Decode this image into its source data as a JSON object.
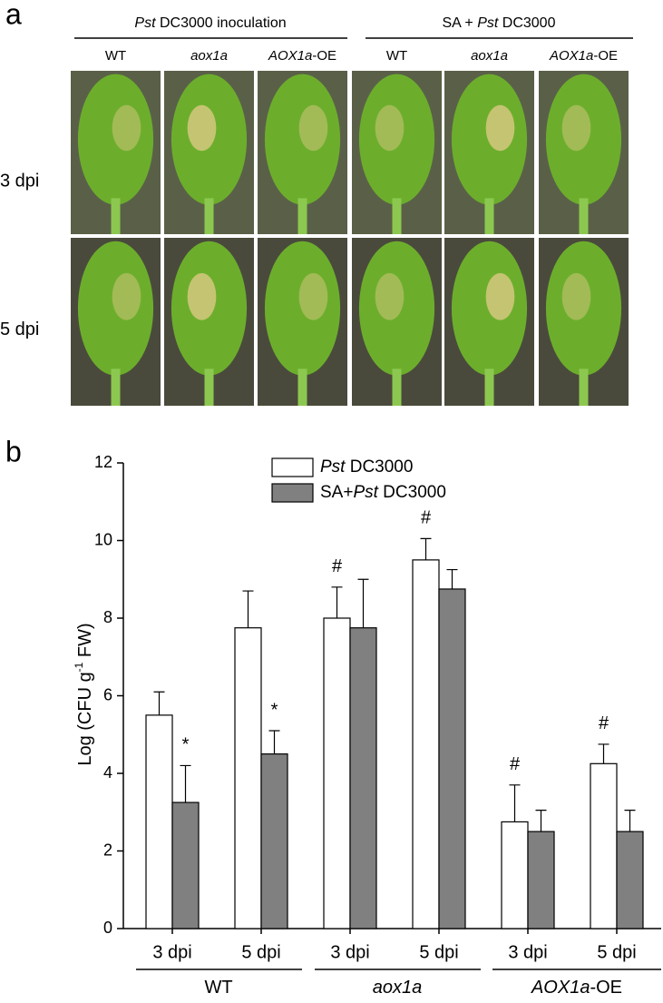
{
  "panel_a": {
    "label": "a",
    "headers": [
      [
        {
          "text": "Pst",
          "italic": true
        },
        {
          "text": " DC3000 inoculation"
        }
      ],
      [
        {
          "text": "SA + "
        },
        {
          "text": "Pst",
          "italic": true
        },
        {
          "text": " DC3000"
        }
      ]
    ],
    "columns": [
      [
        {
          "text": "WT"
        }
      ],
      [
        {
          "text": "aox1a",
          "italic": true
        }
      ],
      [
        {
          "text": "AOX1a",
          "italic": true
        },
        {
          "text": "-OE"
        }
      ],
      [
        {
          "text": "WT"
        }
      ],
      [
        {
          "text": "aox1a",
          "italic": true
        }
      ],
      [
        {
          "text": "AOX1a",
          "italic": true
        },
        {
          "text": "-OE"
        }
      ]
    ],
    "rows": [
      "3 dpi",
      "5 dpi"
    ]
  },
  "chart_data": {
    "type": "bar",
    "panel_label": "b",
    "ylabel": [
      {
        "text": "Log (CFU g"
      },
      {
        "text": "-1",
        "sup": true
      },
      {
        "text": " FW)"
      }
    ],
    "groups": [
      {
        "label": [
          {
            "text": "WT"
          }
        ],
        "categories": [
          "3 dpi",
          "5 dpi"
        ]
      },
      {
        "label": [
          {
            "text": "aox1a",
            "italic": true
          }
        ],
        "categories": [
          "3 dpi",
          "5 dpi"
        ]
      },
      {
        "label": [
          {
            "text": "AOX1a",
            "italic": true
          },
          {
            "text": "-OE"
          }
        ],
        "categories": [
          "3 dpi",
          "5 dpi"
        ]
      }
    ],
    "ylim": [
      0,
      12
    ],
    "yticks": [
      0,
      2,
      4,
      6,
      8,
      10,
      12
    ],
    "series": [
      {
        "name": [
          {
            "text": "Pst",
            "italic": true
          },
          {
            "text": " DC3000"
          }
        ],
        "color": "#ffffff",
        "values": [
          5.5,
          7.75,
          8.0,
          9.5,
          2.75,
          4.25
        ],
        "errors": [
          0.6,
          0.95,
          0.8,
          0.55,
          0.95,
          0.5
        ],
        "annotations": [
          null,
          null,
          "#",
          "#",
          "#",
          "#"
        ]
      },
      {
        "name": [
          {
            "text": "SA+"
          },
          {
            "text": "Pst",
            "italic": true
          },
          {
            "text": " DC3000"
          }
        ],
        "color": "#808080",
        "values": [
          3.25,
          4.5,
          7.75,
          8.75,
          2.5,
          2.5
        ],
        "errors": [
          0.95,
          0.6,
          1.25,
          0.5,
          0.55,
          0.55
        ],
        "annotations": [
          "*",
          "*",
          null,
          null,
          null,
          null
        ]
      }
    ]
  }
}
